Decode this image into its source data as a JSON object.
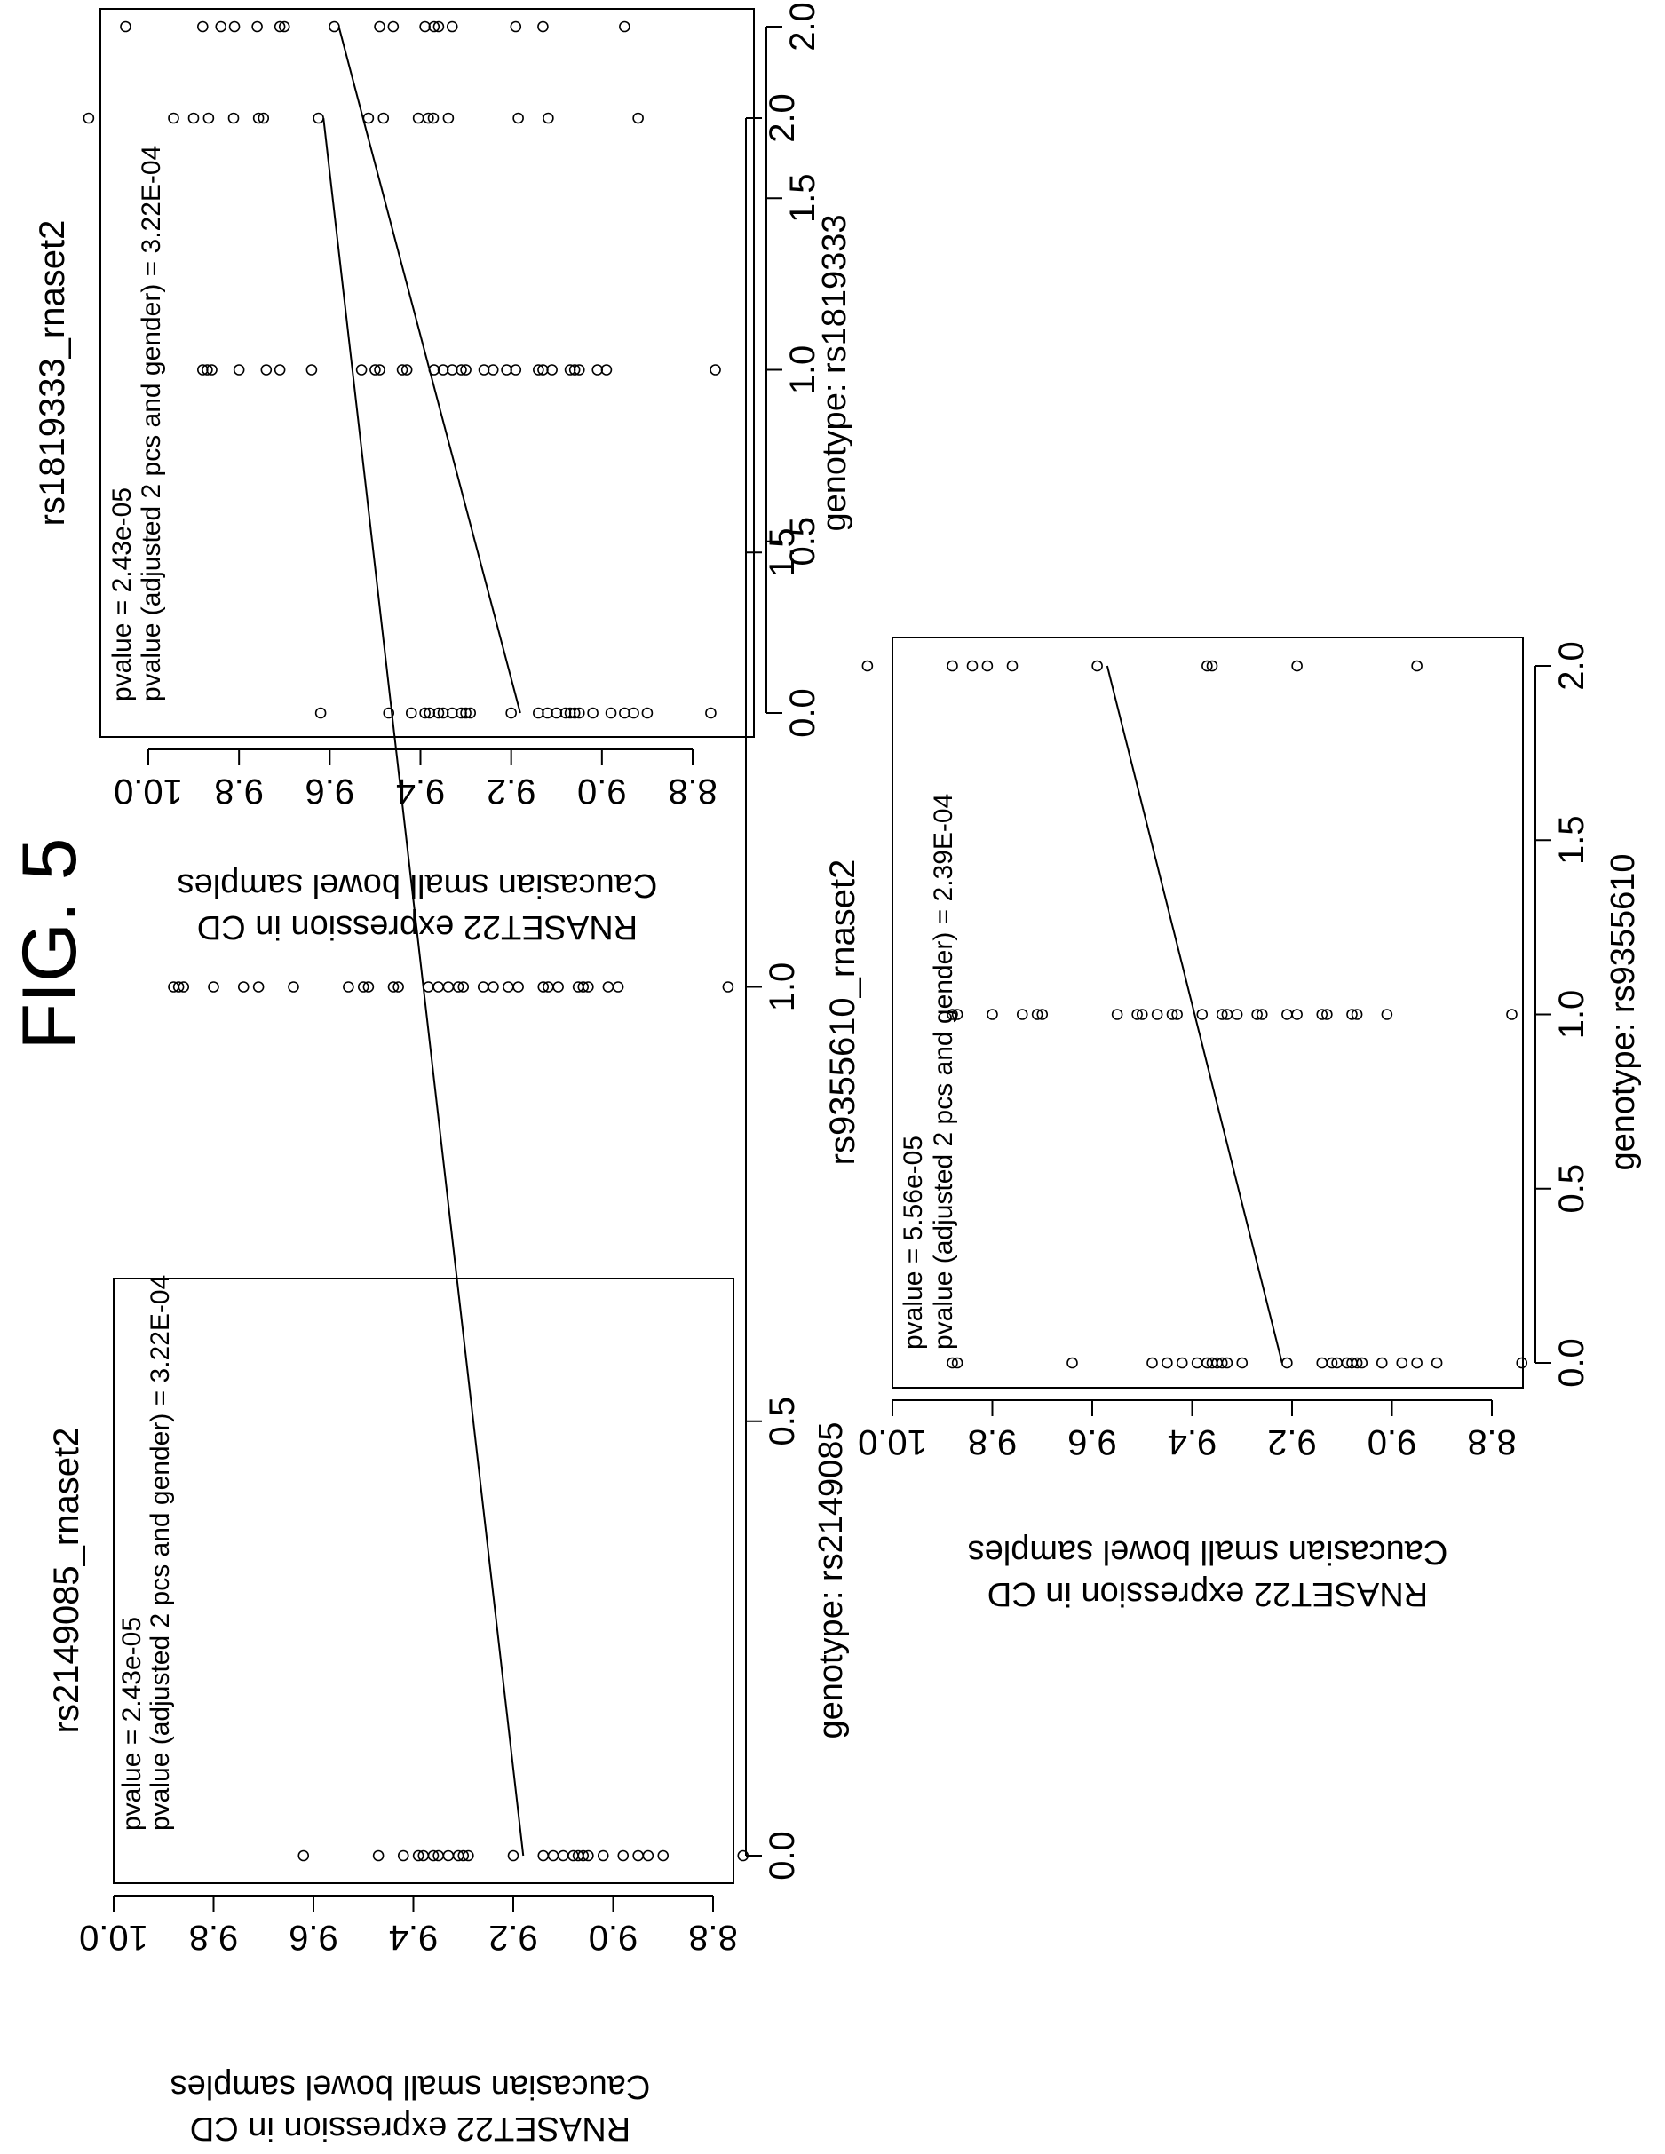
{
  "figure": {
    "label": "FIG. 5"
  },
  "chart_data": [
    {
      "type": "scatter",
      "title": "rs2149085_rnaset2",
      "xlabel": "genotype: rs2149085",
      "ylabel_lines": [
        "RNASET22 expression in CD",
        "Caucasian small bowel samples"
      ],
      "annotations": [
        "pvalue = 2.43e-05",
        "pvalue (adjusted 2 pcs and gender) = 3.22E-04"
      ],
      "xlim": [
        0.0,
        2.0
      ],
      "ylim": [
        8.7,
        10.05
      ],
      "xticks": [
        0.0,
        0.5,
        1.0,
        1.5,
        2.0
      ],
      "xtick_labels": [
        "0.0",
        "0.5",
        "1.0",
        "1.5",
        "2.0"
      ],
      "yticks": [
        8.8,
        9.0,
        9.2,
        9.4,
        9.6,
        9.8,
        10.0
      ],
      "ytick_labels": [
        "8.8",
        "9.0",
        "9.2",
        "9.4",
        "9.6",
        "9.8",
        "10.0"
      ],
      "grid": false,
      "points": {
        "x0": [
          9.62,
          9.47,
          9.42,
          9.39,
          9.38,
          9.36,
          9.35,
          9.33,
          9.31,
          9.3,
          9.29,
          9.2,
          9.14,
          9.12,
          9.1,
          9.08,
          9.07,
          9.06,
          9.05,
          9.02,
          8.98,
          8.95,
          8.93,
          8.9,
          8.74
        ],
        "x1": [
          9.88,
          9.87,
          9.86,
          9.8,
          9.74,
          9.71,
          9.64,
          9.53,
          9.5,
          9.49,
          9.44,
          9.43,
          9.37,
          9.35,
          9.33,
          9.31,
          9.3,
          9.26,
          9.24,
          9.21,
          9.19,
          9.14,
          9.13,
          9.11,
          9.07,
          9.06,
          9.05,
          9.01,
          8.99,
          8.77
        ],
        "x2": [
          10.05,
          9.88,
          9.84,
          9.81,
          9.76,
          9.71,
          9.7,
          9.59,
          9.49,
          9.46,
          9.39,
          9.37,
          9.36,
          9.33,
          9.19,
          9.13,
          8.95
        ]
      },
      "regression": {
        "x": [
          0.0,
          2.0
        ],
        "y": [
          9.18,
          9.58
        ]
      }
    },
    {
      "type": "scatter",
      "title": "rs1819333_rnaset2",
      "xlabel": "genotype: rs1819333",
      "ylabel_lines": [
        "RNASET22 expression in CD",
        "Caucasian small bowel samples"
      ],
      "annotations": [
        "pvalue = 2.43e-05",
        "pvalue (adjusted 2 pcs and gender) = 3.22E-04"
      ],
      "xlim": [
        0.0,
        2.0
      ],
      "ylim": [
        8.7,
        10.05
      ],
      "xticks": [
        0.0,
        0.5,
        1.0,
        1.5,
        2.0
      ],
      "xtick_labels": [
        "0.0",
        "0.5",
        "1.0",
        "1.5",
        "2.0"
      ],
      "yticks": [
        8.8,
        9.0,
        9.2,
        9.4,
        9.6,
        9.8,
        10.0
      ],
      "ytick_labels": [
        "8.8",
        "9.0",
        "9.2",
        "9.4",
        "9.6",
        "9.8",
        "10.0"
      ],
      "grid": false,
      "points": {
        "x0": [
          9.62,
          9.47,
          9.42,
          9.39,
          9.38,
          9.36,
          9.35,
          9.33,
          9.31,
          9.3,
          9.29,
          9.2,
          9.14,
          9.12,
          9.1,
          9.08,
          9.07,
          9.06,
          9.05,
          9.02,
          8.98,
          8.95,
          8.93,
          8.9,
          8.76
        ],
        "x1": [
          9.88,
          9.87,
          9.86,
          9.8,
          9.74,
          9.71,
          9.64,
          9.53,
          9.5,
          9.49,
          9.44,
          9.43,
          9.37,
          9.35,
          9.33,
          9.31,
          9.3,
          9.26,
          9.24,
          9.21,
          9.19,
          9.14,
          9.13,
          9.11,
          9.07,
          9.06,
          9.05,
          9.01,
          8.99,
          8.75
        ],
        "x2": [
          10.05,
          9.88,
          9.84,
          9.81,
          9.76,
          9.71,
          9.7,
          9.59,
          9.49,
          9.46,
          9.39,
          9.37,
          9.36,
          9.33,
          9.19,
          9.13,
          8.95
        ]
      },
      "regression": {
        "x": [
          0.0,
          2.0
        ],
        "y": [
          9.18,
          9.58
        ]
      }
    },
    {
      "type": "scatter",
      "title": "rs9355610_rnaset2",
      "xlabel": "genotype: rs9355610",
      "ylabel_lines": [
        "RNASET22 expression in CD",
        "Caucasian small bowel samples"
      ],
      "annotations": [
        "pvalue = 5.56e-05",
        "pvalue (adjusted 2 pcs and gender) = 2.39E-04"
      ],
      "xlim": [
        0.0,
        2.0
      ],
      "ylim": [
        8.7,
        10.05
      ],
      "xticks": [
        0.0,
        0.5,
        1.0,
        1.5,
        2.0
      ],
      "xtick_labels": [
        "0.0",
        "0.5",
        "1.0",
        "1.5",
        "2.0"
      ],
      "yticks": [
        8.8,
        9.0,
        9.2,
        9.4,
        9.6,
        9.8,
        10.0
      ],
      "ytick_labels": [
        "8.8",
        "9.0",
        "9.2",
        "9.4",
        "9.6",
        "9.8",
        "10.0"
      ],
      "grid": false,
      "points": {
        "x0": [
          9.88,
          9.87,
          9.64,
          9.48,
          9.45,
          9.42,
          9.39,
          9.37,
          9.36,
          9.35,
          9.34,
          9.33,
          9.3,
          9.21,
          9.14,
          9.12,
          9.11,
          9.09,
          9.08,
          9.07,
          9.06,
          9.02,
          8.98,
          8.95,
          8.91,
          8.74
        ],
        "x1": [
          9.88,
          9.87,
          9.8,
          9.74,
          9.71,
          9.7,
          9.55,
          9.51,
          9.5,
          9.47,
          9.44,
          9.43,
          9.38,
          9.34,
          9.33,
          9.31,
          9.27,
          9.26,
          9.21,
          9.19,
          9.14,
          9.13,
          9.08,
          9.07,
          9.01,
          8.76
        ],
        "x2": [
          10.05,
          9.88,
          9.84,
          9.81,
          9.76,
          9.59,
          9.37,
          9.36,
          9.19,
          8.95
        ]
      },
      "regression": {
        "x": [
          0.0,
          2.0
        ],
        "y": [
          9.22,
          9.57
        ]
      }
    }
  ]
}
